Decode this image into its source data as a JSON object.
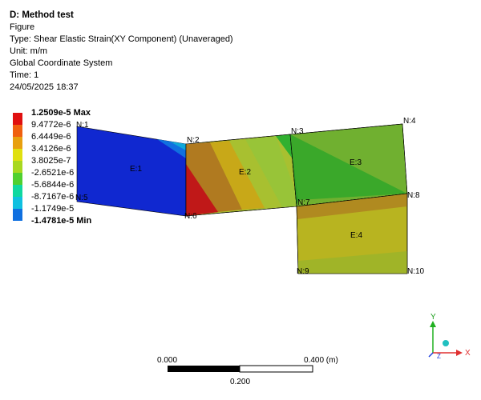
{
  "info": {
    "title": "D: Method test",
    "figure": "Figure",
    "type": "Type: Shear Elastic Strain(XY Component) (Unaveraged)",
    "unit": "Unit: m/m",
    "coord": "Global Coordinate System",
    "time": "Time: 1",
    "date": "24/05/2025 18:37"
  },
  "legend": {
    "entries": [
      {
        "label": "1.2509e-5 Max",
        "color": "#e01010",
        "bold": true
      },
      {
        "label": "9.4772e-6",
        "color": "#f06010",
        "bold": false
      },
      {
        "label": "6.4449e-6",
        "color": "#e8a010",
        "bold": false
      },
      {
        "label": "3.4126e-6",
        "color": "#e0e010",
        "bold": false
      },
      {
        "label": "3.8025e-7",
        "color": "#a8d820",
        "bold": false
      },
      {
        "label": "-2.6521e-6",
        "color": "#50d030",
        "bold": false
      },
      {
        "label": "-5.6844e-6",
        "color": "#10d8a0",
        "bold": false
      },
      {
        "label": "-8.7167e-6",
        "color": "#10c0e0",
        "bold": false
      },
      {
        "label": "-1.1749e-5",
        "color": "#1070e0",
        "bold": false
      },
      {
        "label": "-1.4781e-5 Min",
        "color": "#1020d0",
        "bold": true
      }
    ]
  },
  "mesh": {
    "nodes": {
      "n1": "N:1",
      "n2": "N:2",
      "n3": "N:3",
      "n4": "N:4",
      "n5": "N:5",
      "n6": "N:6",
      "n7": "N:7",
      "n8": "N:8",
      "n9": "N:9",
      "n10": "N:10"
    },
    "elements": {
      "e1": "E:1",
      "e2": "E:2",
      "e3": "E:3",
      "e4": "E:4"
    }
  },
  "scale": {
    "left": "0.000",
    "right": "0.400 (m)",
    "mid": "0.200"
  },
  "triad": {
    "x": "X",
    "y": "Y",
    "z": "Z"
  },
  "colors": {
    "background": "#ffffff"
  }
}
